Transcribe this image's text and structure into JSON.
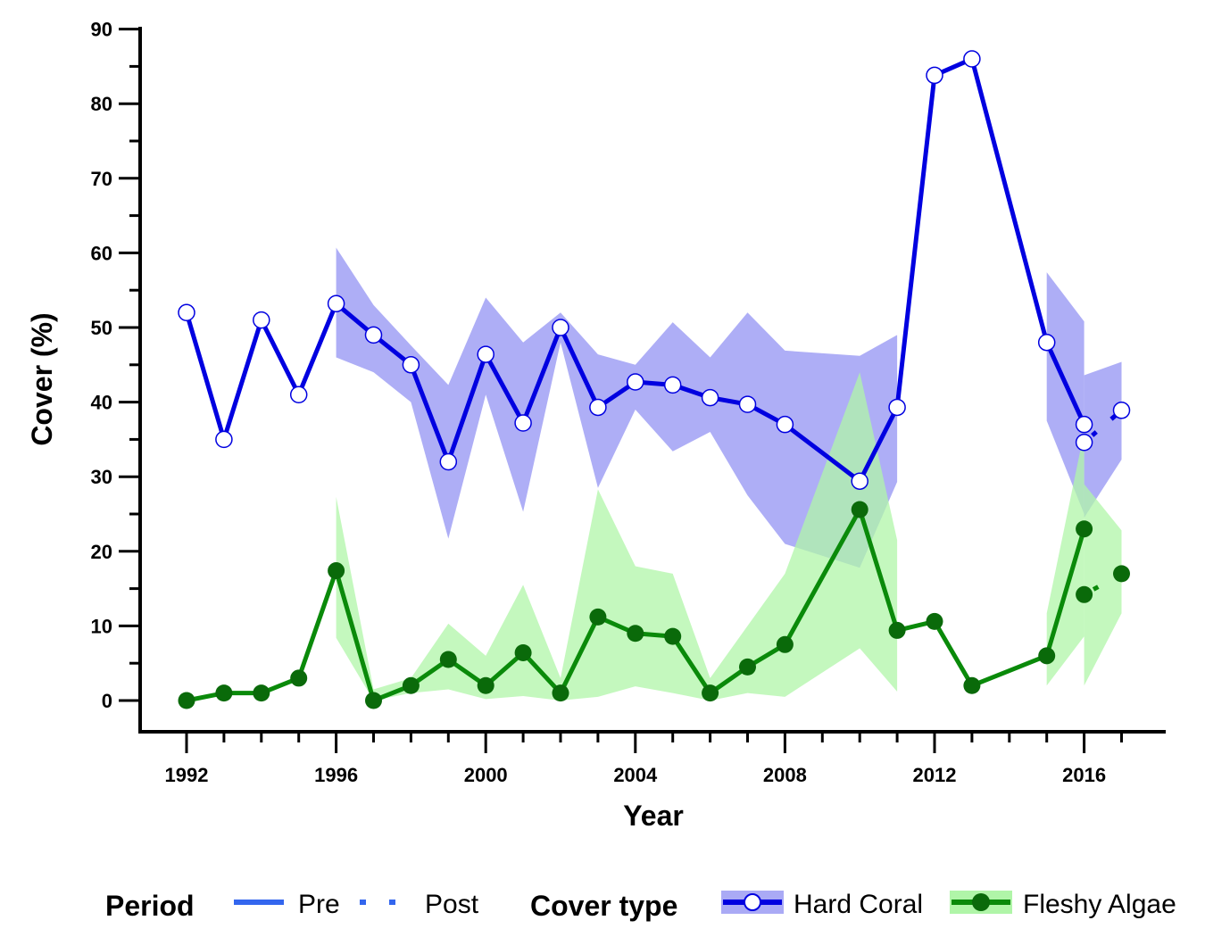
{
  "chart_data": {
    "type": "line",
    "xlabel": "Year",
    "ylabel": "Cover (%)",
    "xlim": [
      1991,
      2018
    ],
    "ylim": [
      -4,
      90
    ],
    "x_ticks": [
      1992,
      1996,
      2000,
      2004,
      2008,
      2012,
      2016
    ],
    "y_ticks": [
      0,
      10,
      20,
      30,
      40,
      50,
      60,
      70,
      80,
      90
    ],
    "grid": false,
    "legend": {
      "position": "bottom",
      "period_title": "Period",
      "period_items": [
        "Pre",
        "Post"
      ],
      "cover_title": "Cover type",
      "cover_items": [
        "Hard Coral",
        "Fleshy Algae"
      ]
    },
    "colors": {
      "hard_coral_line": "#0000e0",
      "hard_coral_band": "#aaaaf5",
      "fleshy_algae_line": "#0a8a0a",
      "fleshy_algae_marker": "#0a6a0a",
      "fleshy_algae_band": "#b0f5a8",
      "legend_pre_line": "#3366ee"
    },
    "series": [
      {
        "name": "Hard Coral",
        "period": "Pre",
        "x": [
          1992,
          1993,
          1994,
          1995,
          1996,
          1997,
          1998,
          1999,
          2000,
          2001,
          2002,
          2003,
          2004,
          2005,
          2006,
          2007,
          2008,
          2010,
          2011,
          2012,
          2013,
          2015,
          2016
        ],
        "y": [
          52,
          35,
          51,
          41,
          53.2,
          49,
          45,
          32,
          46.4,
          37.2,
          50,
          39.3,
          42.7,
          42.3,
          40.6,
          39.7,
          37,
          29.4,
          39.3,
          83.8,
          86,
          48,
          37
        ],
        "lower": [
          null,
          null,
          null,
          null,
          46,
          44,
          40,
          21.7,
          41,
          25.3,
          48,
          28.5,
          39,
          33.4,
          36,
          27.5,
          21,
          17.8,
          29.3,
          null,
          null,
          37.5,
          25
        ],
        "upper": [
          null,
          null,
          null,
          null,
          60.7,
          53,
          47.6,
          42.3,
          54,
          48,
          52,
          46.4,
          45,
          50.7,
          46,
          52,
          46.9,
          46.2,
          49,
          null,
          null,
          57.4,
          50.8
        ]
      },
      {
        "name": "Hard Coral",
        "period": "Post",
        "x": [
          2016,
          2017
        ],
        "y": [
          34.6,
          38.9
        ],
        "lower": [
          24.5,
          32.3
        ],
        "upper": [
          43.6,
          45.4
        ]
      },
      {
        "name": "Fleshy Algae",
        "period": "Pre",
        "x": [
          1992,
          1993,
          1994,
          1995,
          1996,
          1997,
          1998,
          1999,
          2000,
          2001,
          2002,
          2003,
          2004,
          2005,
          2006,
          2007,
          2008,
          2010,
          2011,
          2012,
          2013,
          2015,
          2016
        ],
        "y": [
          0,
          1,
          1,
          3,
          17.4,
          0,
          2,
          5.5,
          2,
          6.4,
          1,
          11.2,
          9,
          8.6,
          1,
          4.5,
          7.5,
          25.6,
          9.4,
          10.6,
          2,
          6,
          23
        ],
        "lower": [
          null,
          null,
          null,
          null,
          8.4,
          0,
          1,
          1.5,
          0.2,
          0.6,
          0,
          0.5,
          1.9,
          1,
          0,
          1,
          0.5,
          7,
          1.2,
          null,
          null,
          2,
          8.6
        ],
        "upper": [
          null,
          null,
          null,
          null,
          27.3,
          1.5,
          3,
          10.3,
          6,
          15.5,
          3,
          28.3,
          18,
          17,
          3,
          10,
          17,
          44,
          21.5,
          null,
          null,
          11.7,
          36
        ]
      },
      {
        "name": "Fleshy Algae",
        "period": "Post",
        "x": [
          2016,
          2017
        ],
        "y": [
          14.2,
          17
        ],
        "lower": [
          2,
          11.7
        ],
        "upper": [
          29,
          22.8
        ]
      }
    ]
  }
}
